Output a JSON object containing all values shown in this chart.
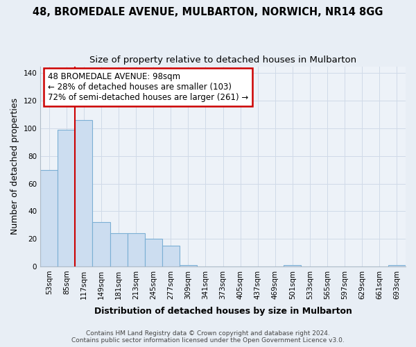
{
  "title_line1": "48, BROMEDALE AVENUE, MULBARTON, NORWICH, NR14 8GG",
  "title_line2": "Size of property relative to detached houses in Mulbarton",
  "xlabel": "Distribution of detached houses by size in Mulbarton",
  "ylabel": "Number of detached properties",
  "bar_labels": [
    "53sqm",
    "85sqm",
    "117sqm",
    "149sqm",
    "181sqm",
    "213sqm",
    "245sqm",
    "277sqm",
    "309sqm",
    "341sqm",
    "373sqm",
    "405sqm",
    "437sqm",
    "469sqm",
    "501sqm",
    "533sqm",
    "565sqm",
    "597sqm",
    "629sqm",
    "661sqm",
    "693sqm"
  ],
  "bar_values": [
    70,
    99,
    106,
    32,
    24,
    24,
    20,
    15,
    1,
    0,
    0,
    0,
    0,
    0,
    1,
    0,
    0,
    0,
    0,
    0,
    1
  ],
  "bar_color": "#ccddf0",
  "bar_edge_color": "#7bafd4",
  "bar_edge_width": 0.8,
  "vline_x": 1.5,
  "vline_color": "#cc0000",
  "ylim": [
    0,
    145
  ],
  "yticks": [
    0,
    20,
    40,
    60,
    80,
    100,
    120,
    140
  ],
  "annotation_text": "48 BROMEDALE AVENUE: 98sqm\n← 28% of detached houses are smaller (103)\n72% of semi-detached houses are larger (261) →",
  "annotation_box_color": "white",
  "annotation_box_edge_color": "#cc0000",
  "footer_text": "Contains HM Land Registry data © Crown copyright and database right 2024.\nContains public sector information licensed under the Open Government Licence v3.0.",
  "background_color": "#e8eef5",
  "plot_background_color": "#edf2f8",
  "grid_color": "#d0dae8",
  "title_fontsize": 10.5,
  "subtitle_fontsize": 9.5,
  "axis_label_fontsize": 9,
  "tick_fontsize": 7.5,
  "footer_fontsize": 6.5,
  "annotation_fontsize": 8.5
}
